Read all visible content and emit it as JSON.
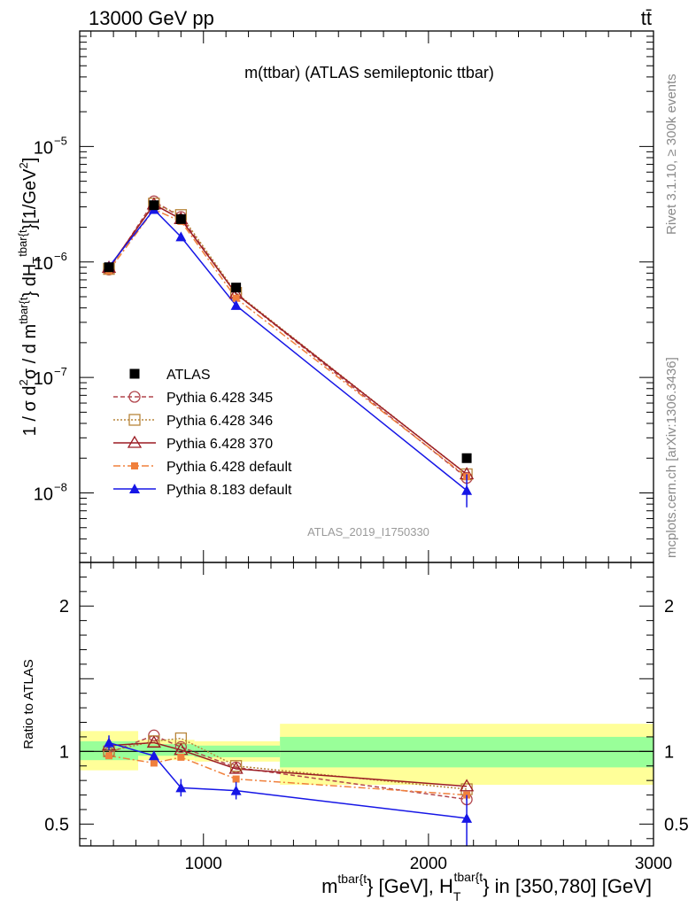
{
  "header": {
    "energy_label": "13000 GeV pp",
    "process_label": "tt̄"
  },
  "side_labels": {
    "rivet": "Rivet 3.1.10, ≥ 300k events",
    "mcplots": "mcplots.cern.ch [arXiv:1306.3436]"
  },
  "chart_data": {
    "type": "line",
    "title": "m(ttbar) (ATLAS semileptonic ttbar)",
    "watermark": "ATLAS_2019_I1750330",
    "xlabel": "m^{tbar{t}} [GeV], H_T^{tbar{t}} in [350,780] [GeV]",
    "xlabel_parts": {
      "m": "m",
      "sup1": "tbar{t",
      "mid": "} [GeV], H",
      "sub2": "T",
      "sup2": "tbar{t",
      "tail": "} in [350,780] [GeV]"
    },
    "xlim": [
      450,
      3000
    ],
    "x_ticks": [
      1000,
      2000,
      3000
    ],
    "x_tick_labels": [
      "1000",
      "2000",
      "3000"
    ],
    "main": {
      "ylabel": "1 / σ d²σ / d m^{tbar{t}} dH_T^{tbar{t}} [1/GeV²]",
      "ylabel_parts": {
        "a": "1 / σ d",
        "a_sup": "2",
        "b": "σ / d m",
        "b_sup": "tbar{t",
        "c": "} dH",
        "c_sub": "T",
        "c_sup": "tbar{t",
        "d": "}[1/GeV",
        "d_sup": "2",
        "e": "]"
      },
      "yscale": "log",
      "ylim": [
        2.5e-09,
        0.0001
      ],
      "y_ticks": [
        {
          "mantissa": "10",
          "exponent": "−8",
          "value": 1e-08
        },
        {
          "mantissa": "10",
          "exponent": "−7",
          "value": 1e-07
        },
        {
          "mantissa": "10",
          "exponent": "−6",
          "value": 1e-06
        },
        {
          "mantissa": "10",
          "exponent": "−5",
          "value": 1e-05
        }
      ]
    },
    "ratio": {
      "ylabel": "Ratio to ATLAS",
      "ylim": [
        0.35,
        2.3
      ],
      "y_ticks": [
        0.5,
        1,
        2
      ],
      "y_tick_labels": [
        "0.5",
        "1",
        "2"
      ],
      "bands": [
        {
          "x0": 450,
          "x1": 710,
          "green": [
            0.94,
            1.07
          ],
          "yellow": [
            0.87,
            1.14
          ]
        },
        {
          "x0": 710,
          "x1": 960,
          "green": [
            0.97,
            1.05
          ],
          "yellow": [
            0.94,
            1.08
          ]
        },
        {
          "x0": 960,
          "x1": 1340,
          "green": [
            0.96,
            1.04
          ],
          "yellow": [
            0.93,
            1.07
          ]
        },
        {
          "x0": 1340,
          "x1": 3000,
          "green": [
            0.89,
            1.1
          ],
          "yellow": [
            0.77,
            1.19
          ]
        }
      ]
    },
    "x": [
      580,
      780,
      900,
      1145,
      2170
    ],
    "atlas": {
      "name": "ATLAS",
      "color": "#000000",
      "values": [
        9e-07,
        3.1e-06,
        2.35e-06,
        6e-07,
        2e-08
      ]
    },
    "series": [
      {
        "name": "Pythia 6.428 345",
        "color": "#b2464d",
        "marker": "circle-open",
        "dash": "5,3",
        "values": [
          8.6e-07,
          3.35e-06,
          2.45e-06,
          5.3e-07,
          1.35e-08
        ],
        "ratio": [
          0.99,
          1.11,
          1.03,
          0.89,
          0.67
        ]
      },
      {
        "name": "Pythia 6.428 346",
        "color": "#b8863b",
        "marker": "square-open",
        "dash": "2,2",
        "values": [
          8.7e-07,
          3.2e-06,
          2.55e-06,
          5.4e-07,
          1.45e-08
        ],
        "ratio": [
          1.0,
          1.07,
          1.09,
          0.9,
          0.74
        ]
      },
      {
        "name": "Pythia 6.428 370",
        "color": "#9b1c24",
        "marker": "triangle-open",
        "dash": "",
        "values": [
          8.9e-07,
          3.15e-06,
          2.35e-06,
          5.3e-07,
          1.45e-08
        ],
        "ratio": [
          1.04,
          1.06,
          1.01,
          0.88,
          0.76
        ]
      },
      {
        "name": "Pythia 6.428 default",
        "color": "#f0803c",
        "marker": "square-filled",
        "dash": "8,3,2,3",
        "values": [
          8.4e-07,
          2.85e-06,
          2.25e-06,
          4.85e-07,
          1.38e-08
        ],
        "ratio": [
          0.97,
          0.92,
          0.96,
          0.81,
          0.7
        ]
      },
      {
        "name": "Pythia 8.183 default",
        "color": "#1616e6",
        "marker": "triangle-filled",
        "dash": "",
        "values": [
          9.1e-07,
          2.85e-06,
          1.65e-06,
          4.2e-07,
          1.05e-08
        ],
        "ratio": [
          1.06,
          0.97,
          0.75,
          0.73,
          0.54
        ],
        "main_err": [
          null,
          null,
          null,
          null,
          [
            7.5e-09,
            1.45e-08
          ]
        ],
        "ratio_err": [
          [
            1.01,
            1.11
          ],
          null,
          [
            0.69,
            0.81
          ],
          [
            0.67,
            0.79
          ],
          [
            0.35,
            0.7
          ]
        ]
      }
    ]
  }
}
